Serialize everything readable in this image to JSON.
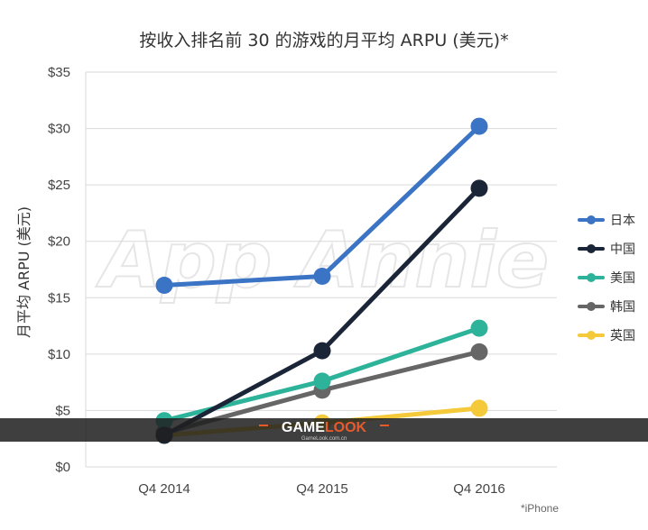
{
  "chart_data": {
    "type": "line",
    "title": "按收入排名前 30 的游戏的月平均 ARPU (美元)*",
    "xlabel": "",
    "ylabel": "月平均 ARPU (美元)",
    "categories": [
      "Q4 2014",
      "Q4 2015",
      "Q4 2016"
    ],
    "ylim": [
      0,
      35
    ],
    "y_ticks": [
      "$0",
      "$5",
      "$10",
      "$15",
      "$20",
      "$25",
      "$30",
      "$35"
    ],
    "grid": "horizontal",
    "legend_position": "right",
    "footnote": "*iPhone",
    "watermark": "App Annie",
    "series": [
      {
        "name": "日本",
        "color": "#3b74c4",
        "values": [
          16.1,
          16.9,
          30.2
        ]
      },
      {
        "name": "中国",
        "color": "#1b2538",
        "values": [
          2.8,
          10.3,
          24.7
        ]
      },
      {
        "name": "美国",
        "color": "#2cb39a",
        "values": [
          4.1,
          7.6,
          12.3
        ]
      },
      {
        "name": "韩国",
        "color": "#666666",
        "values": [
          3.0,
          6.8,
          10.2
        ]
      },
      {
        "name": "英国",
        "color": "#f4c93a",
        "values": [
          2.8,
          3.9,
          5.2
        ]
      }
    ]
  },
  "banner": {
    "brand_part1": "GAME",
    "brand_part2": "LOOK",
    "subtext": "GameLook.com.cn",
    "accent_color": "#e85a2a"
  }
}
